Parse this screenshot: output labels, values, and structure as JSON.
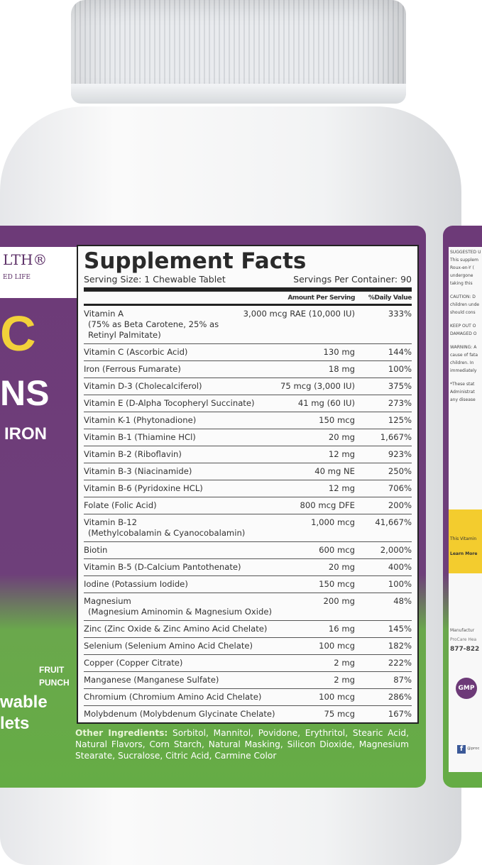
{
  "colors": {
    "purple": "#6d3a78",
    "green": "#65ac45",
    "yellow": "#f2d13a",
    "cap": "#e3e5e8"
  },
  "front_label": {
    "brand": "LTH®",
    "tagline": "ED LIFE",
    "big_letter": "C",
    "line2": "NS",
    "line3": "IRON",
    "flavor": [
      "FRUIT",
      "PUNCH"
    ],
    "form": [
      "wable",
      "lets"
    ]
  },
  "facts": {
    "title": "Supplement Facts",
    "serving_size": "Serving Size: 1 Chewable Tablet",
    "servings_per_container": "Servings Per Container: 90",
    "col_amount": "Amount Per Serving",
    "col_dv": "%Daily Value",
    "rows": [
      {
        "name": "Vitamin A",
        "sub": "(75% as Beta Carotene, 25% as Retinyl Palmitate)",
        "amount": "3,000 mcg RAE (10,000 IU)",
        "dv": "333%"
      },
      {
        "name": "Vitamin C (Ascorbic Acid)",
        "amount": "130 mg",
        "dv": "144%"
      },
      {
        "name": "Iron (Ferrous Fumarate)",
        "amount": "18 mg",
        "dv": "100%"
      },
      {
        "name": "Vitamin D-3 (Cholecalciferol)",
        "amount": "75 mcg (3,000 IU)",
        "dv": "375%"
      },
      {
        "name": "Vitamin E (D-Alpha Tocopheryl Succinate)",
        "amount": "41 mg (60 IU)",
        "dv": "273%"
      },
      {
        "name": "Vitamin K-1 (Phytonadione)",
        "amount": "150 mcg",
        "dv": "125%"
      },
      {
        "name": "Vitamin B-1 (Thiamine HCl)",
        "amount": "20 mg",
        "dv": "1,667%"
      },
      {
        "name": "Vitamin B-2 (Riboflavin)",
        "amount": "12 mg",
        "dv": "923%"
      },
      {
        "name": "Vitamin B-3 (Niacinamide)",
        "amount": "40 mg NE",
        "dv": "250%"
      },
      {
        "name": "Vitamin B-6 (Pyridoxine HCL)",
        "amount": "12 mg",
        "dv": "706%"
      },
      {
        "name": "Folate (Folic Acid)",
        "amount": "800 mcg DFE",
        "dv": "200%"
      },
      {
        "name": "Vitamin B-12",
        "sub": "(Methylcobalamin & Cyanocobalamin)",
        "amount": "1,000 mcg",
        "dv": "41,667%"
      },
      {
        "name": "Biotin",
        "amount": "600 mcg",
        "dv": "2,000%"
      },
      {
        "name": "Vitamin B-5 (D-Calcium Pantothenate)",
        "amount": "20 mg",
        "dv": "400%"
      },
      {
        "name": "Iodine (Potassium Iodide)",
        "amount": "150 mcg",
        "dv": "100%"
      },
      {
        "name": "Magnesium",
        "sub": "(Magnesium Aminomin & Magnesium Oxide)",
        "amount": "200 mg",
        "dv": "48%"
      },
      {
        "name": "Zinc (Zinc Oxide & Zinc Amino Acid Chelate)",
        "amount": "16 mg",
        "dv": "145%"
      },
      {
        "name": "Selenium (Selenium Amino Acid Chelate)",
        "amount": "100 mcg",
        "dv": "182%"
      },
      {
        "name": "Copper (Copper Citrate)",
        "amount": "2 mg",
        "dv": "222%"
      },
      {
        "name": "Manganese (Manganese Sulfate)",
        "amount": "2 mg",
        "dv": "87%"
      },
      {
        "name": "Chromium (Chromium Amino Acid Chelate)",
        "amount": "100 mcg",
        "dv": "286%"
      },
      {
        "name": "Molybdenum (Molybdenum Glycinate Chelate)",
        "amount": "75 mcg",
        "dv": "167%"
      }
    ],
    "other_label": "Other Ingredients:",
    "other_text": " Sorbitol, Mannitol, Povidone, Erythritol, Stearic Acid, Natural Flavors, Corn Starch, Natural Masking, Silicon Dioxide, Magnesium Stearate, Sucralose, Citric Acid, Carmine Color"
  },
  "side_label": {
    "lines": [
      "SUGGESTED U",
      "This supplem",
      "Roux-en-Y (",
      "undergone",
      "taking this",
      "CAUTION: D",
      "children unde",
      "should cons",
      "KEEP OUT O",
      "DAMAGED O",
      "WARNING: A",
      "cause of fata",
      "children. In",
      "immediately",
      "*These stat",
      "Administrat",
      "any disease"
    ],
    "yellow_1": "This Vitamin",
    "yellow_2": "Learn More",
    "manufacturer": "Manufactur",
    "company": "ProCare Hea",
    "phone": "877-822",
    "gmp": "GMP",
    "social": "@proc"
  }
}
